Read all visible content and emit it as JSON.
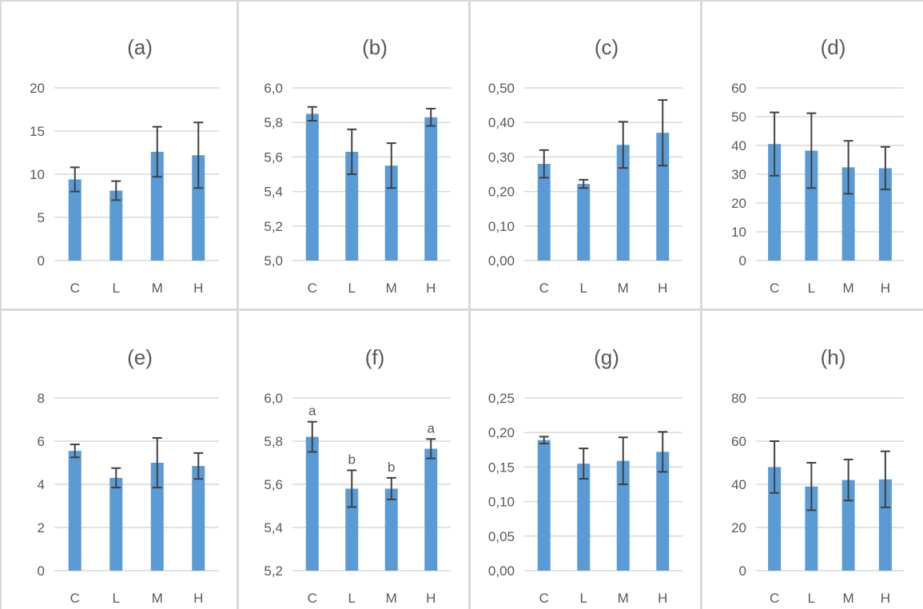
{
  "colors": {
    "bar": "#5b9bd5",
    "error": "#404040",
    "grid": "#d9d9d9",
    "text": "#595959"
  },
  "chart_data": [
    {
      "type": "bar",
      "title": "(a)",
      "categories": [
        "C",
        "L",
        "M",
        "H"
      ],
      "values": [
        9.4,
        8.1,
        12.6,
        12.2
      ],
      "errors": [
        1.4,
        1.1,
        2.9,
        3.8
      ],
      "ylim": [
        0,
        20
      ],
      "yticks": [
        "0",
        "5",
        "10",
        "15",
        "20"
      ],
      "letters": [
        "",
        "",
        "",
        ""
      ],
      "grid": true
    },
    {
      "type": "bar",
      "title": "(b)",
      "categories": [
        "C",
        "L",
        "M",
        "H"
      ],
      "values": [
        5.85,
        5.63,
        5.55,
        5.83
      ],
      "errors": [
        0.04,
        0.13,
        0.13,
        0.05
      ],
      "ylim": [
        5.0,
        6.0
      ],
      "yticks": [
        "5,0",
        "5,2",
        "5,4",
        "5,6",
        "5,8",
        "6,0"
      ],
      "letters": [
        "",
        "",
        "",
        ""
      ],
      "grid": true
    },
    {
      "type": "bar",
      "title": "(c)",
      "categories": [
        "C",
        "L",
        "M",
        "H"
      ],
      "values": [
        0.28,
        0.222,
        0.335,
        0.37
      ],
      "errors": [
        0.04,
        0.012,
        0.067,
        0.095
      ],
      "ylim": [
        0,
        0.5
      ],
      "yticks": [
        "0,00",
        "0,10",
        "0,20",
        "0,30",
        "0,40",
        "0,50"
      ],
      "letters": [
        "",
        "",
        "",
        ""
      ],
      "grid": true
    },
    {
      "type": "bar",
      "title": "(d)",
      "categories": [
        "C",
        "L",
        "M",
        "H"
      ],
      "values": [
        40.5,
        38.2,
        32.4,
        32.1
      ],
      "errors": [
        11,
        13,
        9.2,
        7.4
      ],
      "ylim": [
        0,
        60
      ],
      "yticks": [
        "0",
        "10",
        "20",
        "30",
        "40",
        "50",
        "60"
      ],
      "letters": [
        "",
        "",
        "",
        ""
      ],
      "grid": true
    },
    {
      "type": "bar",
      "title": "(e)",
      "categories": [
        "C",
        "L",
        "M",
        "H"
      ],
      "values": [
        5.55,
        4.3,
        5.0,
        4.85
      ],
      "errors": [
        0.3,
        0.45,
        1.15,
        0.6
      ],
      "ylim": [
        0,
        8
      ],
      "yticks": [
        "0",
        "2",
        "4",
        "6",
        "8"
      ],
      "letters": [
        "",
        "",
        "",
        ""
      ],
      "grid": true
    },
    {
      "type": "bar",
      "title": "(f)",
      "categories": [
        "C",
        "L",
        "M",
        "H"
      ],
      "values": [
        5.82,
        5.58,
        5.58,
        5.765
      ],
      "errors": [
        0.07,
        0.085,
        0.05,
        0.045
      ],
      "ylim": [
        5.2,
        6.0
      ],
      "yticks": [
        "5,2",
        "5,4",
        "5,6",
        "5,8",
        "6,0"
      ],
      "letters": [
        "a",
        "b",
        "b",
        "a"
      ],
      "grid": true
    },
    {
      "type": "bar",
      "title": "(g)",
      "categories": [
        "C",
        "L",
        "M",
        "H"
      ],
      "values": [
        0.189,
        0.155,
        0.159,
        0.172
      ],
      "errors": [
        0.005,
        0.022,
        0.034,
        0.029
      ],
      "ylim": [
        0,
        0.25
      ],
      "yticks": [
        "0,00",
        "0,05",
        "0,10",
        "0,15",
        "0,20",
        "0,25"
      ],
      "letters": [
        "",
        "",
        "",
        ""
      ],
      "grid": true
    },
    {
      "type": "bar",
      "title": "(h)",
      "categories": [
        "C",
        "L",
        "M",
        "H"
      ],
      "values": [
        48,
        39,
        42,
        42.3
      ],
      "errors": [
        12,
        11,
        9.5,
        13
      ],
      "ylim": [
        0,
        80
      ],
      "yticks": [
        "0",
        "20",
        "40",
        "60",
        "80"
      ],
      "letters": [
        "",
        "",
        "",
        ""
      ],
      "grid": true
    }
  ]
}
